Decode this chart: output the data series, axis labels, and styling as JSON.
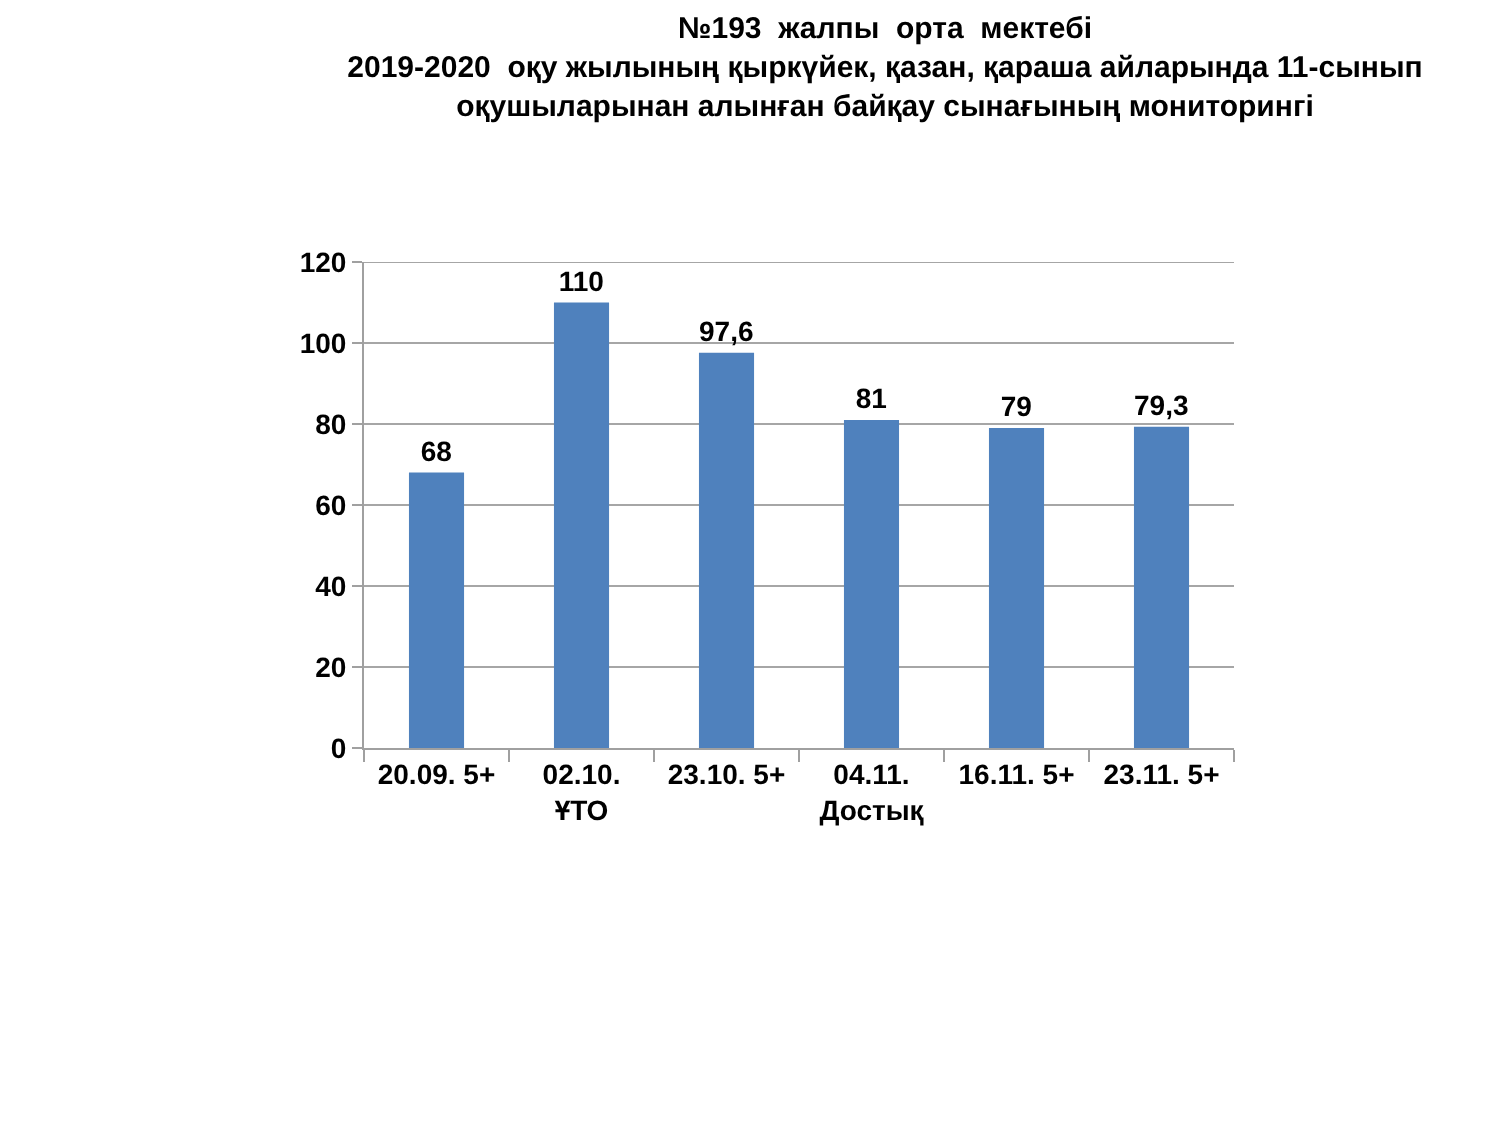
{
  "chart_data": {
    "type": "bar",
    "title": "№193  жалпы  орта  мектебі\n2019-2020  оқу жылының қыркүйек, қазан, қараша айларында 11-сынып\nоқушыларынан алынған байқау сынағының мониторингі",
    "categories": [
      "20.09. 5+",
      "02.10.\nҰТО",
      "23.10. 5+",
      "04.11.\nДостық",
      "16.11. 5+",
      "23.11. 5+"
    ],
    "values": [
      68,
      110,
      97.6,
      81,
      79,
      79.3
    ],
    "value_labels": [
      "68",
      "110",
      "97,6",
      "81",
      "79",
      "79,3"
    ],
    "color": "#4f81bd",
    "ylim": [
      0,
      120
    ],
    "yticks": [
      0,
      20,
      40,
      60,
      80,
      100,
      120
    ],
    "grid": "y"
  }
}
